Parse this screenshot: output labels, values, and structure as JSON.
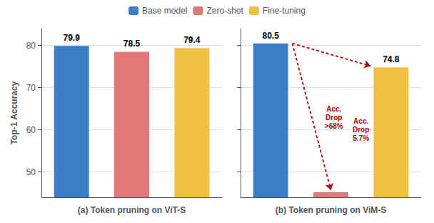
{
  "chart_data": [
    {
      "type": "bar",
      "xlabel": "(a) Token pruning on ViT-S",
      "ylabel": "Top-1 Accuracy",
      "categories": [
        "Base model",
        "Zero-shot",
        "Fine-tuning"
      ],
      "values": [
        79.9,
        78.5,
        79.4
      ],
      "colors": [
        "#3A7EC6",
        "#E07878",
        "#F0C040"
      ],
      "ylim": [
        44,
        84
      ],
      "yticks": [
        50,
        60,
        70,
        80
      ],
      "grid": true,
      "legend": "top",
      "data_labels": true,
      "tick_labels": "y"
    },
    {
      "type": "bar",
      "xlabel": "(b) Token pruning on ViM-S",
      "categories": [
        "Base model",
        "Zero-shot",
        "Fine-tuning"
      ],
      "values": [
        80.5,
        45.2,
        74.8
      ],
      "value_labels": [
        "80.5",
        null,
        "74.8"
      ],
      "colors": [
        "#3A7EC6",
        "#E07878",
        "#F0C040"
      ],
      "ylim": [
        44,
        84
      ],
      "yticks": [
        50,
        60,
        70,
        80
      ],
      "grid": true,
      "legend": "top",
      "data_labels": true,
      "tick_labels": false,
      "annotations": [
        {
          "text": "Acc.\nDrop\n>68%",
          "from": "Base model",
          "to": "Zero-shot",
          "color": "#BB0000"
        },
        {
          "text": "Acc.\nDrop\n5.7%",
          "from": "Base model",
          "to": "Fine-tuning",
          "color": "#BB0000"
        }
      ]
    }
  ]
}
